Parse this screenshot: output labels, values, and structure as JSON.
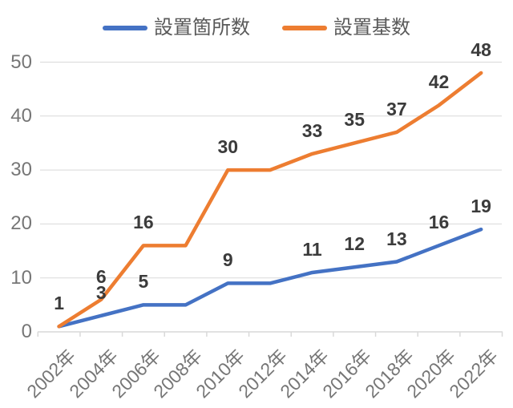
{
  "chart_data": {
    "type": "line",
    "title": "",
    "categories": [
      "2002年",
      "2004年",
      "2006年",
      "2008年",
      "2010年",
      "2012年",
      "2014年",
      "2016年",
      "2018年",
      "2020年",
      "2022年"
    ],
    "series": [
      {
        "name": "設置箇所数",
        "color": "#4472C4",
        "values": [
          1,
          3,
          5,
          5,
          9,
          9,
          11,
          12,
          13,
          16,
          19
        ],
        "labels": [
          "",
          "3",
          "5",
          "",
          "9",
          "",
          "11",
          "12",
          "13",
          "16",
          "19"
        ]
      },
      {
        "name": "設置基数",
        "color": "#ED7D31",
        "values": [
          1,
          6,
          16,
          16,
          30,
          30,
          33,
          35,
          37,
          42,
          48
        ],
        "labels": [
          "1",
          "6",
          "16",
          "",
          "30",
          "",
          "33",
          "35",
          "37",
          "42",
          "48"
        ]
      }
    ],
    "ylim": [
      0,
      50
    ],
    "yticks": [
      0,
      10,
      20,
      30,
      40,
      50
    ],
    "grid": true,
    "legend_position": "top",
    "colors": {
      "gridline": "#D9D9D9",
      "axis_line": "#D9D9D9",
      "axis_text": "#767676",
      "data_label_text": "#3B3B3B"
    }
  }
}
